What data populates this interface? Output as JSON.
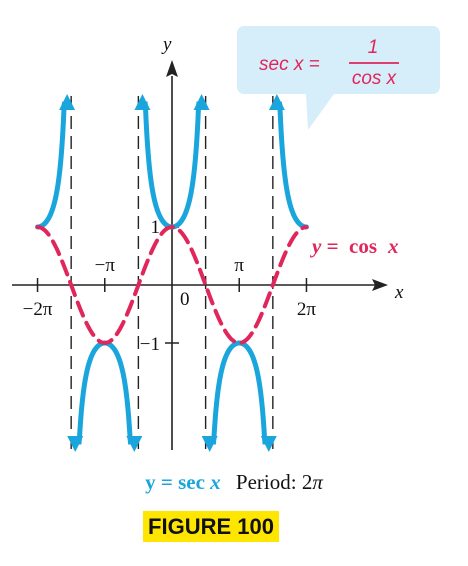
{
  "chart_data": {
    "type": "line",
    "xlim": [
      -6.6,
      7.4
    ],
    "ylim": [
      -5.2,
      5.8
    ],
    "x_tick_labels": [
      "−2π",
      "−π",
      "0",
      "π",
      "2π"
    ],
    "y_tick_labels": [
      "1",
      "−1"
    ],
    "axis_labels": {
      "x": "x",
      "y": "y"
    },
    "asymptotes": [
      -4.712,
      -1.571,
      1.571,
      4.712
    ],
    "series": [
      {
        "name": "y = sec x",
        "expr": "sec(x)",
        "domain": [
          -6.283,
          6.283
        ],
        "style": "solid",
        "color": "#1aa6dc"
      },
      {
        "name": "y = cos x",
        "expr": "cos(x)",
        "domain": [
          -6.283,
          6.283
        ],
        "style": "dashed",
        "color": "#e0265a"
      }
    ],
    "cos_label": {
      "y_eq": "y = ",
      "fn": "cos",
      "var": "x"
    },
    "callout": {
      "lhs": "sec x =",
      "numerator": "1",
      "denominator": "cos x"
    }
  },
  "caption": {
    "sec_label_prefix": "y = sec ",
    "sec_label_var": "x",
    "period_label": "Period: 2",
    "period_pi": "π"
  },
  "figure_label": "FIGURE 100",
  "colors": {
    "sec": "#1aa6dc",
    "cos": "#e0265a",
    "callout_bg": "#d6eefa",
    "figure_bg": "#ffe600"
  }
}
